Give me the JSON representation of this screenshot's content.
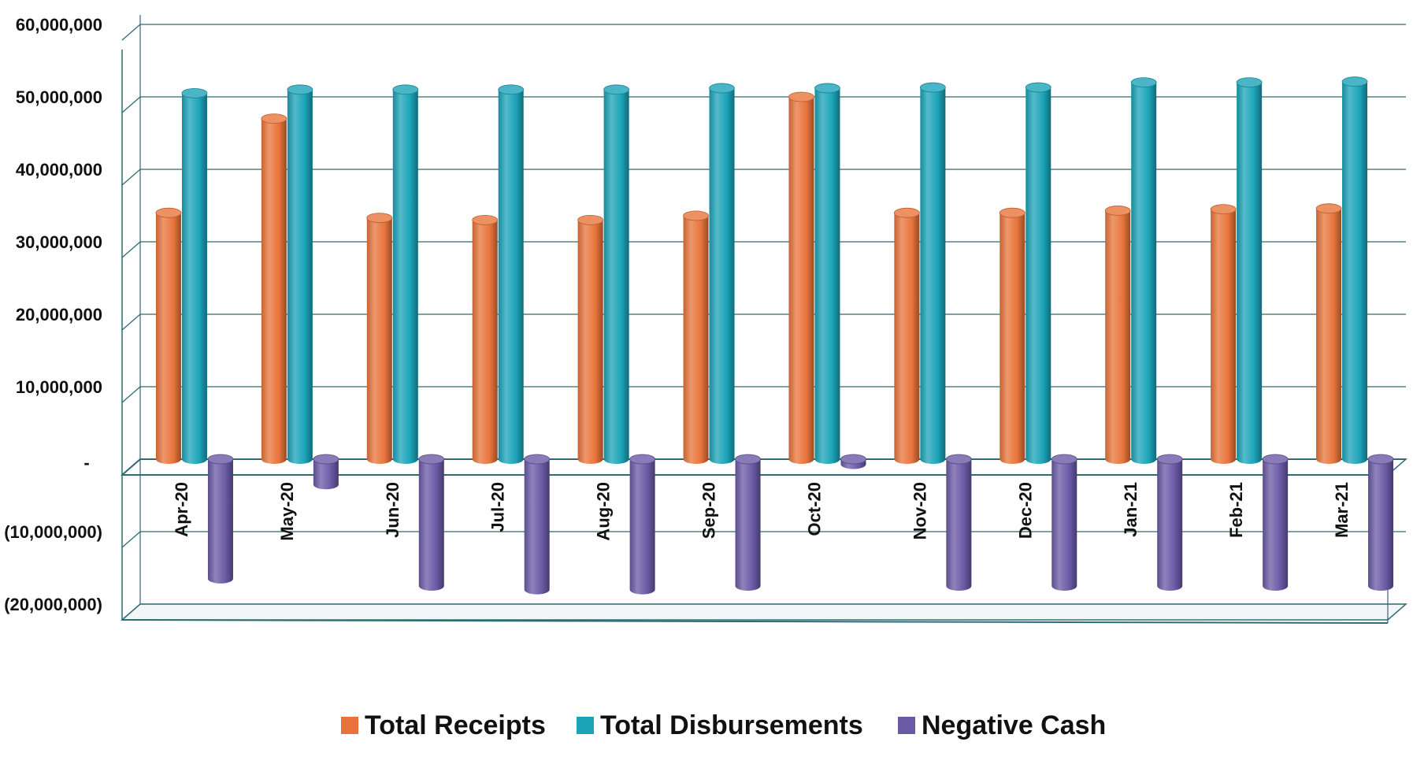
{
  "chart_data": {
    "type": "bar",
    "title": "",
    "xlabel": "",
    "ylabel": "",
    "categories": [
      "Apr-20",
      "May-20",
      "Jun-20",
      "Jul-20",
      "Aug-20",
      "Sep-20",
      "Oct-20",
      "Nov-20",
      "Dec-20",
      "Jan-21",
      "Feb-21",
      "Mar-21"
    ],
    "series": [
      {
        "name": "Total Receipts",
        "color": "#e8743b",
        "values": [
          34000000,
          47000000,
          33300000,
          33000000,
          33000000,
          33600000,
          50000000,
          34000000,
          34000000,
          34300000,
          34500000,
          34600000
        ]
      },
      {
        "name": "Total Disbursements",
        "color": "#1ba3b8",
        "values": [
          50500000,
          51000000,
          51000000,
          51000000,
          51000000,
          51200000,
          51200000,
          51300000,
          51300000,
          52000000,
          52000000,
          52100000
        ]
      },
      {
        "name": "Negative Cash",
        "color": "#6a5aa6",
        "values": [
          -16500000,
          -3500000,
          -17500000,
          -18000000,
          -18000000,
          -17500000,
          -700000,
          -17500000,
          -17500000,
          -17500000,
          -17500000,
          -17500000
        ]
      }
    ],
    "y_ticks": [
      {
        "value": 60000000,
        "label": "60,000,000"
      },
      {
        "value": 50000000,
        "label": "50,000,000"
      },
      {
        "value": 40000000,
        "label": "40,000,000"
      },
      {
        "value": 30000000,
        "label": "30,000,000"
      },
      {
        "value": 20000000,
        "label": "20,000,000"
      },
      {
        "value": 10000000,
        "label": "10,000,000"
      },
      {
        "value": 0,
        "label": "-"
      },
      {
        "value": -10000000,
        "label": "(10,000,000)"
      },
      {
        "value": -20000000,
        "label": "(20,000,000)"
      }
    ],
    "ylim": [
      -20000000,
      60000000
    ],
    "grid": true,
    "legend_position": "bottom-center",
    "style": "3d-cylinder"
  }
}
